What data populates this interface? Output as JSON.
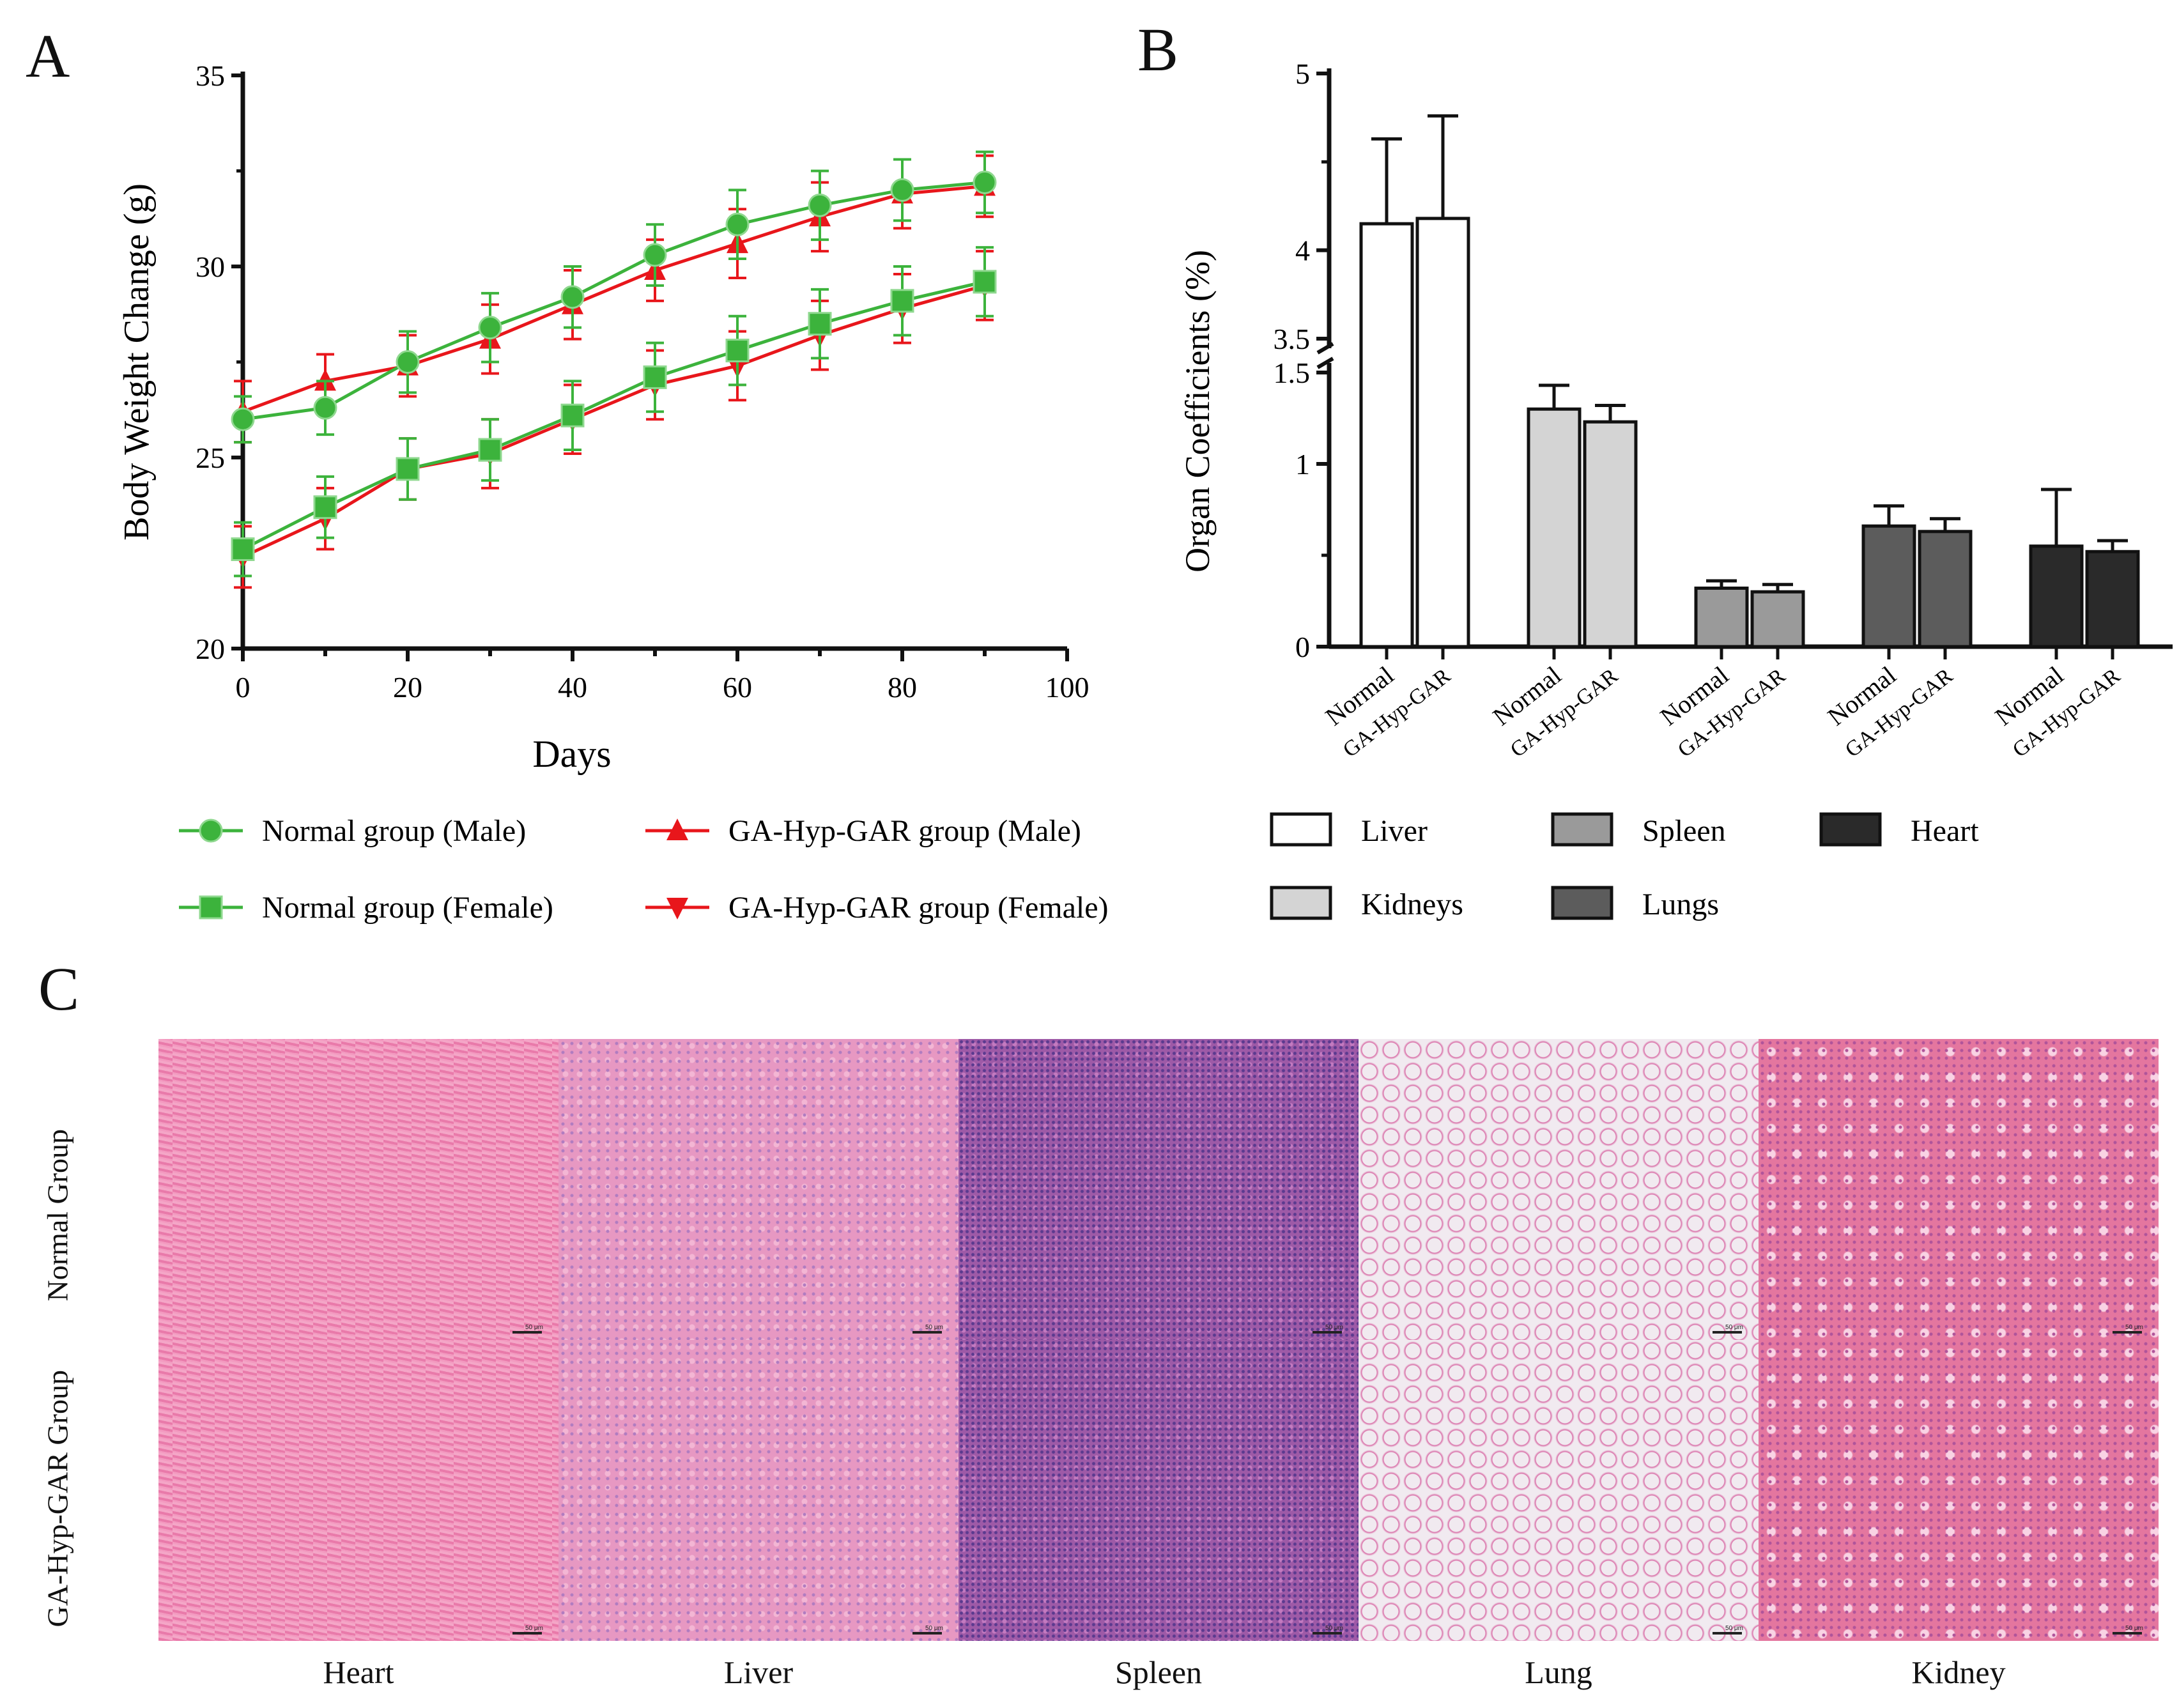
{
  "panels": {
    "a_label": "A",
    "b_label": "B",
    "c_label": "C"
  },
  "chart_data": [
    {
      "type": "line",
      "panel": "A",
      "xlabel": "Days",
      "ylabel": "Body Weight Change (g)",
      "xlim": [
        0,
        100
      ],
      "ylim": [
        20,
        35
      ],
      "xticks": [
        0,
        20,
        40,
        60,
        80,
        100
      ],
      "yticks": [
        20,
        25,
        30,
        35
      ],
      "grid": false,
      "legend_position": "bottom",
      "x": [
        0,
        10,
        20,
        30,
        40,
        50,
        60,
        70,
        80,
        90
      ],
      "series": [
        {
          "name": "Normal group (Male)",
          "color": "#3cb33c",
          "marker": "circle",
          "values": [
            26.0,
            26.3,
            27.5,
            28.4,
            29.2,
            30.3,
            31.1,
            31.6,
            32.0,
            32.2
          ],
          "errors": [
            0.6,
            0.7,
            0.8,
            0.9,
            0.8,
            0.8,
            0.9,
            0.9,
            0.8,
            0.8
          ]
        },
        {
          "name": "GA-Hyp-GAR group (Male)",
          "color": "#e8161b",
          "marker": "triangle-up",
          "values": [
            26.2,
            27.0,
            27.4,
            28.1,
            29.0,
            29.9,
            30.6,
            31.3,
            31.9,
            32.1
          ],
          "errors": [
            0.8,
            0.7,
            0.8,
            0.9,
            0.9,
            0.8,
            0.9,
            0.9,
            0.9,
            0.8
          ]
        },
        {
          "name": "Normal group (Female)",
          "color": "#3cb33c",
          "marker": "square",
          "values": [
            22.6,
            23.7,
            24.7,
            25.2,
            26.1,
            27.1,
            27.8,
            28.5,
            29.1,
            29.6
          ],
          "errors": [
            0.7,
            0.8,
            0.8,
            0.8,
            0.9,
            0.9,
            0.9,
            0.9,
            0.9,
            0.9
          ]
        },
        {
          "name": "GA-Hyp-GAR group (Female)",
          "color": "#e8161b",
          "marker": "triangle-down",
          "values": [
            22.4,
            23.4,
            24.7,
            25.1,
            26.0,
            26.9,
            27.4,
            28.2,
            28.9,
            29.5
          ],
          "errors": [
            0.8,
            0.8,
            0.8,
            0.9,
            0.9,
            0.9,
            0.9,
            0.9,
            0.9,
            0.9
          ]
        }
      ]
    },
    {
      "type": "bar",
      "panel": "B",
      "ylabel": "Organ Coefficients (%)",
      "y_axis_break": [
        1.5,
        3.5
      ],
      "ylim": [
        0,
        5
      ],
      "yticks": [
        "0",
        "1",
        "1.5",
        "3.5",
        "4",
        "5"
      ],
      "categories": [
        "Normal",
        "GA-Hyp-GAR",
        "Normal",
        "GA-Hyp-GAR",
        "Normal",
        "GA-Hyp-GAR",
        "Normal",
        "GA-Hyp-GAR",
        "Normal",
        "GA-Hyp-GAR"
      ],
      "legend_position": "bottom",
      "groups": [
        {
          "name": "Liver",
          "color": "#ffffff",
          "values": [
            4.15,
            4.18
          ],
          "errors": [
            0.48,
            0.58
          ]
        },
        {
          "name": "Kidneys",
          "color": "#d4d4d4",
          "values": [
            1.3,
            1.23
          ],
          "errors": [
            0.13,
            0.09
          ]
        },
        {
          "name": "Spleen",
          "color": "#9a9a9a",
          "values": [
            0.32,
            0.3
          ],
          "errors": [
            0.04,
            0.04
          ]
        },
        {
          "name": "Lungs",
          "color": "#5c5c5c",
          "values": [
            0.66,
            0.63
          ],
          "errors": [
            0.11,
            0.07
          ]
        },
        {
          "name": "Heart",
          "color": "#2a2a2a",
          "values": [
            0.55,
            0.52
          ],
          "errors": [
            0.31,
            0.06
          ]
        }
      ]
    }
  ],
  "histology": {
    "row_labels": [
      "Normal Group",
      "GA-Hyp-GAR Group"
    ],
    "col_labels": [
      "Heart",
      "Liver",
      "Spleen",
      "Lung",
      "Kidney"
    ],
    "scale_text": "50 μm",
    "tissue_colors": {
      "Heart": "#ec86b0",
      "Liver": "#e79ac3",
      "Spleen": "#9c5aa6",
      "Lung": "#efe6ef",
      "Kidney": "#e4769f"
    }
  }
}
